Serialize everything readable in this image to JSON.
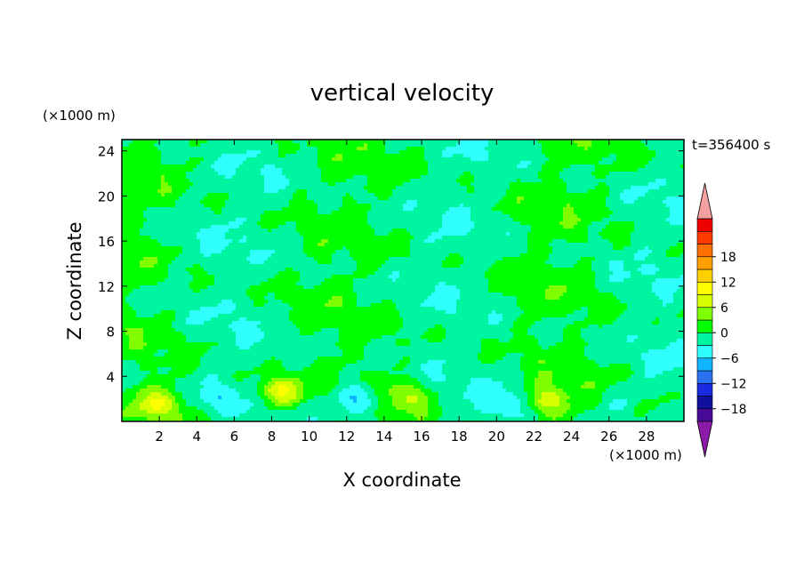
{
  "chart_data": {
    "type": "heatmap",
    "title": "vertical velocity",
    "xlabel": "X coordinate",
    "ylabel": "Z coordinate",
    "x_unit": "(×1000 m)",
    "y_unit": "(×1000 m)",
    "time_label": "t=356400 s",
    "xlim": [
      0,
      30
    ],
    "ylim": [
      0,
      25
    ],
    "xticks": [
      2,
      4,
      6,
      8,
      10,
      12,
      14,
      16,
      18,
      20,
      22,
      24,
      26,
      28
    ],
    "yticks": [
      4,
      8,
      12,
      16,
      20,
      24
    ],
    "grid": false,
    "colorbar": {
      "placement": "right",
      "min": -21,
      "max": 21,
      "step": 3,
      "tick_values": [
        18,
        12,
        6,
        0,
        -6,
        -12,
        -18
      ],
      "tick_labels": [
        "18",
        "12",
        "6",
        "0",
        "−6",
        "−12",
        "−18"
      ],
      "colors": [
        "#4a0a99",
        "#1010a0",
        "#1a2ae0",
        "#2a72f0",
        "#10b4ff",
        "#30ffff",
        "#00f5a0",
        "#00ff00",
        "#80ff00",
        "#d8ff00",
        "#ffff00",
        "#ffd000",
        "#ffa000",
        "#ff7000",
        "#ff3a00",
        "#ee0000"
      ],
      "under_color": "#8b1aa6",
      "over_color": "#f4a0a0"
    },
    "features": [
      {
        "x": 2.0,
        "z": 1.6,
        "peak": 8
      },
      {
        "x": 8.4,
        "z": 2.6,
        "peak": 11
      },
      {
        "x": 15.3,
        "z": 2.3,
        "peak": 6
      },
      {
        "x": 22.7,
        "z": 1.8,
        "peak": 9
      },
      {
        "x": 5.0,
        "z": 2.0,
        "peak": -4
      },
      {
        "x": 12.6,
        "z": 2.0,
        "peak": -9
      },
      {
        "x": 20.5,
        "z": 1.5,
        "peak": -4
      },
      {
        "x": 26.5,
        "z": 2.0,
        "peak": -3
      }
    ]
  }
}
